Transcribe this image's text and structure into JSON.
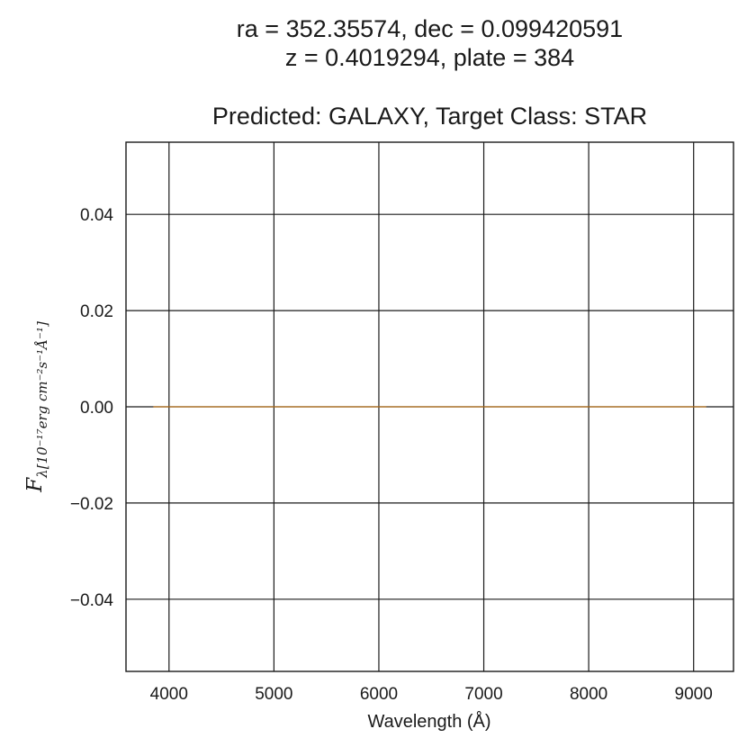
{
  "chart_data": {
    "type": "line",
    "title_lines": [
      "ra = 352.35574, dec = 0.099420591",
      "z = 0.4019294, plate = 384",
      "Predicted: GALAXY, Target Class: STAR"
    ],
    "xlabel": "Wavelength (Å)",
    "ylabel": {
      "main": "F",
      "subscript": "λ[10⁻¹⁷erg cm⁻²s⁻¹Å⁻¹]"
    },
    "xlim": [
      3590,
      9380
    ],
    "ylim": [
      -0.055,
      0.055
    ],
    "x_ticks": [
      4000,
      5000,
      6000,
      7000,
      8000,
      9000
    ],
    "x_tick_labels": [
      "4000",
      "5000",
      "6000",
      "7000",
      "8000",
      "9000"
    ],
    "y_ticks": [
      0.04,
      0.02,
      0.0,
      -0.02,
      -0.04
    ],
    "y_tick_labels": [
      "0.04",
      "0.02",
      "0.00",
      "−0.02",
      "−0.04"
    ],
    "grid": true,
    "series": [
      {
        "color": "#1f1f1f",
        "x": [
          3850,
          9120
        ],
        "y": [
          0.0,
          0.0
        ]
      },
      {
        "color": "#e08a1e",
        "x": [
          3850,
          9120
        ],
        "y": [
          0.0,
          0.0
        ]
      }
    ]
  }
}
